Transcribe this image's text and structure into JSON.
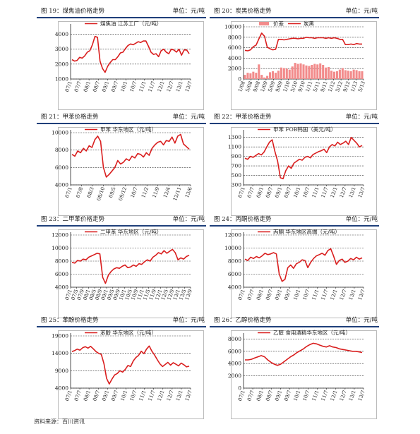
{
  "source": "资料来源：百川资讯",
  "colors": {
    "line": "#d91e1e",
    "rule": "#1f3f7a",
    "bar": "#f28b8b"
  },
  "panels": [
    {
      "title": "图 19：煤焦油价格走势",
      "unit": "单位：元/吨",
      "chart_data": {
        "type": "line",
        "series": [
          {
            "name": "煤焦油 江苏工厂（元/吨）",
            "values": [
              2300,
              2200,
              2250,
              2450,
              2400,
              2550,
              2800,
              2900,
              3300,
              3850,
              3800,
              2200,
              1700,
              1450,
              1850,
              2100,
              2300,
              2300,
              2500,
              2750,
              2800,
              3050,
              3250,
              3350,
              3300,
              3400,
              3500,
              3450,
              3550,
              3550,
              3200,
              2800,
              2650,
              2700,
              2500,
              2900,
              3000,
              2800,
              2700,
              3000,
              2950,
              2800,
              3000,
              2600,
              2950,
              2950,
              2700
            ]
          }
        ],
        "x_ticks": [
          "07/1",
          "07/7",
          "08/1",
          "08/7",
          "09/1",
          "09/7",
          "10/1",
          "10/7",
          "11/1",
          "11/7",
          "12/1",
          "12/7",
          "13/1",
          "13/7"
        ],
        "y_ticks": [
          1000,
          2000,
          3000,
          4000
        ],
        "ylim": [
          1000,
          4500
        ]
      }
    },
    {
      "title": "图 20：炭黑价格走势",
      "unit": "单位：元/吨",
      "chart_data": {
        "type": "bar+line",
        "series": [
          {
            "name": "价差",
            "type": "bar",
            "values": [
              800,
              1200,
              1100,
              1400,
              1200,
              2800,
              800,
              300,
              600,
              1300,
              1500,
              1200,
              1600,
              2200,
              2100,
              2000,
              1800,
              2400,
              3100,
              2900,
              3000,
              2800,
              2600,
              2500,
              2700,
              2900,
              2800,
              3000,
              2700,
              2200,
              2300,
              1600,
              1400,
              1500,
              1800,
              2100,
              1700,
              1600,
              1500,
              1800,
              1700,
              1500,
              1500
            ]
          },
          {
            "name": "炭黑",
            "type": "line",
            "values": [
              5500,
              5400,
              5600,
              6200,
              6500,
              7700,
              8800,
              8200,
              6100,
              5800,
              5600,
              5700,
              7600,
              7600,
              7500,
              7600,
              7700,
              7800,
              7800,
              7700,
              7800,
              7800,
              8000,
              7900,
              7900,
              7800,
              7900,
              7900,
              7900,
              7800,
              7900,
              7800,
              7900,
              7800,
              7600,
              7600,
              6600,
              6600,
              6700,
              6600,
              6800,
              6700,
              6700
            ]
          }
        ],
        "x_ticks": [
          "1/08",
          "5/08",
          "9/08",
          "1/09",
          "5/09",
          "9/09",
          "1/10",
          "5/10",
          "9/10",
          "1/11",
          "5/11",
          "9/11",
          "1/12",
          "5/12",
          "9/12",
          "1/13",
          "5/13"
        ],
        "y_ticks": [
          0,
          2000,
          4000,
          6000,
          8000,
          10000
        ],
        "ylim": [
          0,
          10000
        ]
      }
    },
    {
      "title": "图 21：甲苯价格走势",
      "unit": "单位：元/吨",
      "chart_data": {
        "type": "line",
        "series": [
          {
            "name": "甲苯 华东地区（元/吨）",
            "values": [
              7500,
              7300,
              7900,
              7700,
              8200,
              7900,
              8500,
              8300,
              9200,
              9600,
              9000,
              6000,
              4900,
              5200,
              5600,
              6000,
              6800,
              6400,
              6600,
              7000,
              6800,
              7300,
              7100,
              7600,
              7500,
              7200,
              7700,
              7400,
              8200,
              8600,
              8900,
              9000,
              8600,
              9100,
              9000,
              9500,
              8800,
              9600,
              9800,
              8700,
              8400,
              8100
            ]
          }
        ],
        "x_ticks": [
          "07/1",
          "07/8",
          "08/3",
          "08/10",
          "09/5",
          "09/12",
          "10/7",
          "11/2",
          "11/9",
          "12/4",
          "12/11",
          "13/6"
        ],
        "y_ticks": [
          4000,
          6000,
          8000,
          10000
        ],
        "ylim": [
          4000,
          10000
        ]
      }
    },
    {
      "title": "图 22：甲苯价格走势",
      "unit": "单位：元/吨",
      "chart_data": {
        "type": "line",
        "series": [
          {
            "name": "甲苯 FOB韩国（美元/吨）",
            "values": [
              860,
              840,
              900,
              880,
              920,
              960,
              930,
              990,
              1100,
              1200,
              1250,
              1000,
              800,
              450,
              430,
              600,
              700,
              650,
              760,
              800,
              840,
              820,
              880,
              900,
              870,
              940,
              970,
              1000,
              1020,
              1050,
              980,
              1100,
              1150,
              1120,
              1200,
              1150,
              1180,
              1220,
              1150,
              1300,
              1240,
              1180,
              1100,
              1130
            ]
          }
        ],
        "x_ticks": [
          "07/1",
          "07/7",
          "08/1",
          "08/7",
          "09/1",
          "09/7",
          "10/1",
          "10/7",
          "11/1",
          "11/7",
          "12/1",
          "12/7",
          "13/1",
          "13/7"
        ],
        "y_ticks": [
          300,
          500,
          700,
          900,
          1100,
          1300
        ],
        "ylim": [
          300,
          1400
        ]
      }
    },
    {
      "title": "图 23：二甲苯价格走势",
      "unit": "单位：元/吨",
      "chart_data": {
        "type": "line",
        "series": [
          {
            "name": "二甲苯 华东地区（元/吨）",
            "values": [
              7800,
              7700,
              8100,
              8000,
              8300,
              8200,
              8600,
              8800,
              9000,
              9200,
              9100,
              5500,
              4600,
              5800,
              6400,
              6800,
              7000,
              6900,
              7200,
              7400,
              7000,
              7100,
              7400,
              7200,
              7600,
              7500,
              7900,
              8200,
              8000,
              8600,
              8900,
              9300,
              9100,
              9600,
              9200,
              9500,
              9800,
              9300,
              8200,
              8500,
              8300,
              8700,
              8900
            ]
          }
        ],
        "x_ticks": [
          "07/1",
          "07/5",
          "07/9",
          "08/1",
          "08/5",
          "08/9",
          "09/1",
          "09/5",
          "09/9",
          "10/1",
          "10/5",
          "10/9",
          "11/1",
          "11/5",
          "11/9",
          "12/1",
          "12/5",
          "12/9",
          "13/1",
          "13/5",
          "13/9"
        ],
        "y_ticks": [
          4000,
          6000,
          8000,
          10000,
          12000
        ],
        "ylim": [
          4000,
          12000
        ]
      }
    },
    {
      "title": "图 24：丙酮价格走势",
      "unit": "单位：元/吨",
      "chart_data": {
        "type": "line",
        "series": [
          {
            "name": "丙酮 华东地区高端（元/吨）",
            "values": [
              8300,
              8100,
              8600,
              8400,
              8700,
              8500,
              8800,
              9200,
              9000,
              9100,
              9300,
              9100,
              6000,
              4900,
              5200,
              7000,
              7400,
              6900,
              7600,
              7800,
              8200,
              8100,
              7000,
              7800,
              8400,
              8800,
              9000,
              9200,
              8900,
              9600,
              9900,
              8800,
              7500,
              8100,
              8300,
              7800,
              8000,
              8400,
              8200,
              8600,
              8300,
              8500
            ]
          }
        ],
        "x_ticks": [
          "07/1",
          "07/7",
          "08/1",
          "08/7",
          "09/1",
          "09/7",
          "10/1",
          "10/7",
          "11/1",
          "11/7",
          "12/1",
          "12/7",
          "13/1",
          "13/7"
        ],
        "y_ticks": [
          4000,
          6000,
          8000,
          10000,
          12000
        ],
        "ylim": [
          4000,
          12000
        ]
      }
    },
    {
      "title": "图 25：苯酚价格走势",
      "unit": "单位：元/吨",
      "chart_data": {
        "type": "line",
        "series": [
          {
            "name": "苯酚 华东地区（元/吨）",
            "values": [
              14500,
              14800,
              15200,
              14900,
              15600,
              15900,
              15500,
              16000,
              15300,
              14500,
              14000,
              13700,
              11000,
              6800,
              5200,
              6600,
              7800,
              8200,
              9000,
              8600,
              9400,
              10500,
              10200,
              11800,
              12800,
              13400,
              14600,
              13900,
              15200,
              16100,
              14600,
              13500,
              12200,
              11000,
              10200,
              10800,
              11400,
              10600,
              11300,
              10900,
              10400,
              11200,
              10700,
              10100,
              10300
            ]
          }
        ],
        "x_ticks": [
          "07/1",
          "07/7",
          "08/1",
          "08/7",
          "09/1",
          "09/7",
          "10/1",
          "10/7",
          "11/1",
          "11/7",
          "12/1",
          "12/7",
          "13/1",
          "13/7"
        ],
        "y_ticks": [
          4000,
          9000,
          14000,
          19000
        ],
        "ylim": [
          4000,
          19000
        ]
      }
    },
    {
      "title": "图 26：乙醇价格走势",
      "unit": "单位：元/吨",
      "chart_data": {
        "type": "line",
        "series": [
          {
            "name": "乙醇 食用酒精华东地区（元/吨）",
            "values": [
              4600,
              4600,
              4700,
              4900,
              5100,
              5300,
              5100,
              4600,
              4200,
              3900,
              3700,
              3900,
              4300,
              4700,
              5100,
              5400,
              5800,
              6100,
              6400,
              6800,
              7100,
              7300,
              7200,
              7000,
              6800,
              6700,
              6900,
              6700,
              6600,
              6400,
              6300,
              6200,
              6100,
              6000,
              6000,
              5900,
              5800
            ]
          }
        ],
        "x_ticks": [
          "07/1",
          "07/7",
          "08/1",
          "08/7",
          "09/1",
          "09/7",
          "10/1",
          "10/7",
          "11/1",
          "11/7",
          "12/1",
          "12/7",
          "13/1",
          "13/7"
        ],
        "y_ticks": [
          0,
          2000,
          4000,
          6000,
          8000
        ],
        "ylim": [
          0,
          8500
        ]
      }
    }
  ]
}
